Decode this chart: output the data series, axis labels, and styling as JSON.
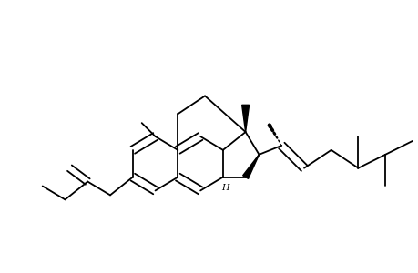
{
  "background": "#ffffff",
  "line_color": "#000000",
  "line_width": 1.3,
  "figure_size": [
    4.6,
    3.0
  ],
  "dpi": 100
}
